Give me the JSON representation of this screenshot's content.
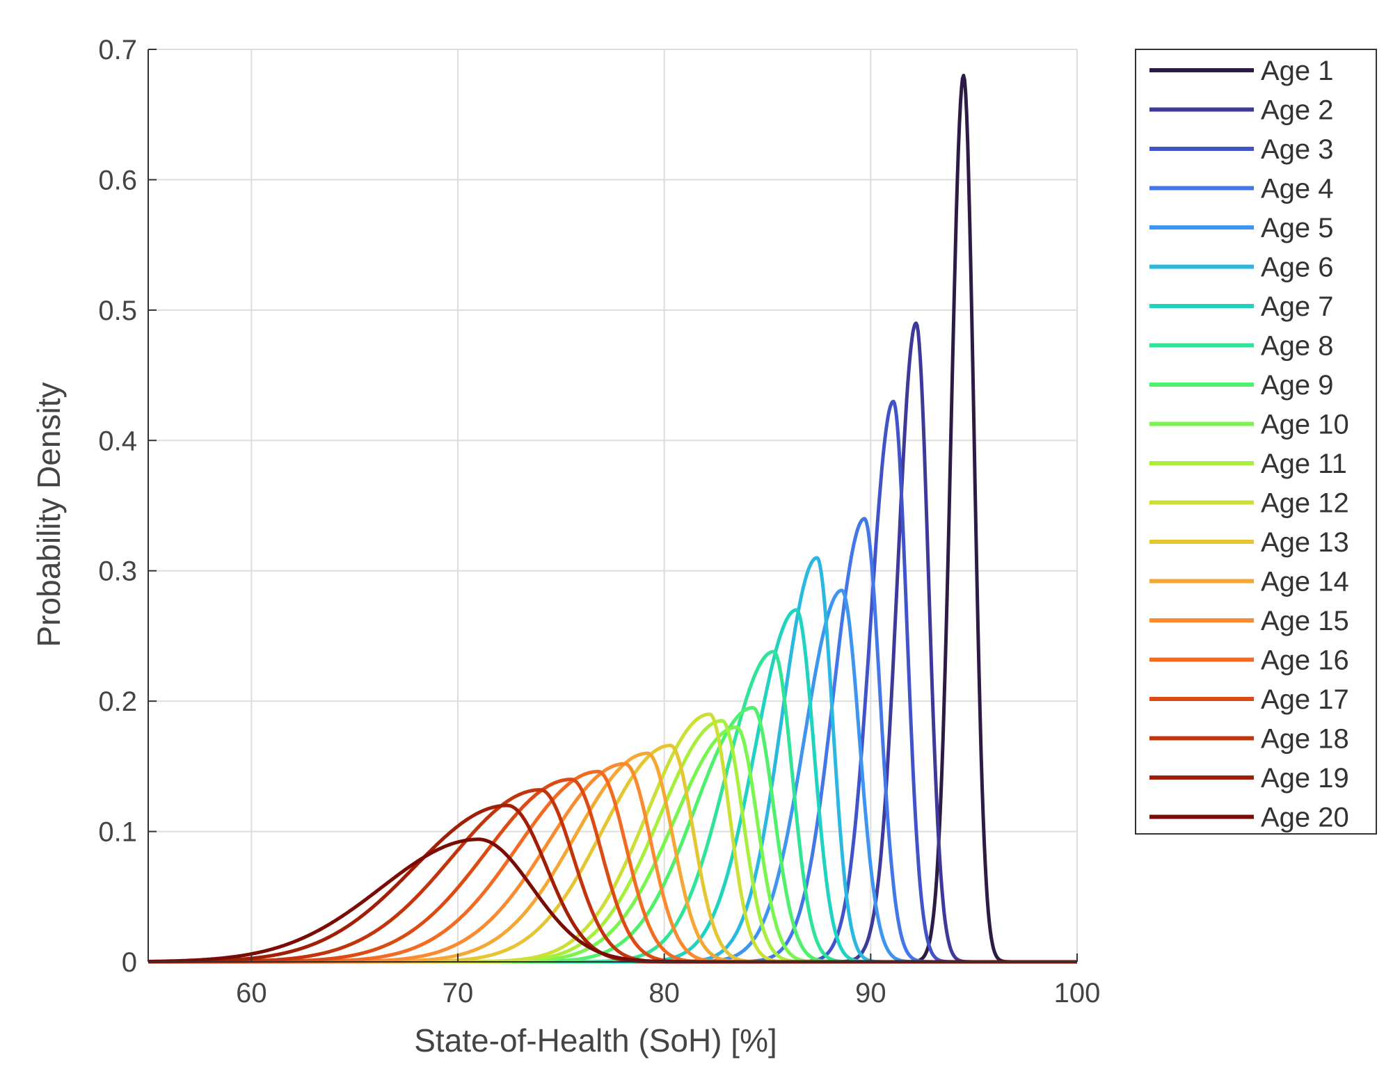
{
  "chart_data": {
    "type": "line",
    "title": "",
    "xlabel": "State-of-Health (SoH) [%]",
    "ylabel": "Probability Density",
    "xlim": [
      55,
      100
    ],
    "ylim": [
      0,
      0.7
    ],
    "xticks": [
      60,
      70,
      80,
      90,
      100
    ],
    "xtick_labels": [
      "60",
      "70",
      "80",
      "90",
      "100"
    ],
    "yticks": [
      0,
      0.1,
      0.2,
      0.3,
      0.4,
      0.5,
      0.6,
      0.7
    ],
    "ytick_labels": [
      "0",
      "0.1",
      "0.2",
      "0.3",
      "0.4",
      "0.5",
      "0.6",
      "0.7"
    ],
    "grid": true,
    "legend_position": "outside-right",
    "series": [
      {
        "name": "Age 1",
        "color": "#2d1a45",
        "mode": 94.5,
        "peak": 0.68,
        "sigma_left": 0.6,
        "sigma_right": 0.5
      },
      {
        "name": "Age 2",
        "color": "#3e3a9a",
        "mode": 92.2,
        "peak": 0.49,
        "sigma_left": 0.9,
        "sigma_right": 0.6
      },
      {
        "name": "Age 3",
        "color": "#4153c8",
        "mode": 91.1,
        "peak": 0.43,
        "sigma_left": 1.1,
        "sigma_right": 0.65
      },
      {
        "name": "Age 4",
        "color": "#4376e6",
        "mode": 89.7,
        "peak": 0.34,
        "sigma_left": 1.5,
        "sigma_right": 0.75
      },
      {
        "name": "Age 5",
        "color": "#3e95f0",
        "mode": 88.6,
        "peak": 0.285,
        "sigma_left": 1.8,
        "sigma_right": 0.85
      },
      {
        "name": "Age 6",
        "color": "#2bb8e0",
        "mode": 87.4,
        "peak": 0.31,
        "sigma_left": 1.7,
        "sigma_right": 0.75
      },
      {
        "name": "Age 7",
        "color": "#1fd3c0",
        "mode": 86.4,
        "peak": 0.27,
        "sigma_left": 2.0,
        "sigma_right": 0.85
      },
      {
        "name": "Age 8",
        "color": "#31e396",
        "mode": 85.3,
        "peak": 0.238,
        "sigma_left": 2.3,
        "sigma_right": 0.9
      },
      {
        "name": "Age 9",
        "color": "#4ef06c",
        "mode": 84.3,
        "peak": 0.195,
        "sigma_left": 2.8,
        "sigma_right": 1.0
      },
      {
        "name": "Age 10",
        "color": "#7af54d",
        "mode": 83.5,
        "peak": 0.18,
        "sigma_left": 3.0,
        "sigma_right": 1.0
      },
      {
        "name": "Age 11",
        "color": "#a8ef3d",
        "mode": 82.8,
        "peak": 0.185,
        "sigma_left": 3.0,
        "sigma_right": 1.0
      },
      {
        "name": "Age 12",
        "color": "#ccdf36",
        "mode": 82.2,
        "peak": 0.19,
        "sigma_left": 3.0,
        "sigma_right": 0.95
      },
      {
        "name": "Age 13",
        "color": "#e6c532",
        "mode": 80.3,
        "peak": 0.166,
        "sigma_left": 3.3,
        "sigma_right": 1.1
      },
      {
        "name": "Age 14",
        "color": "#f6a733",
        "mode": 79.2,
        "peak": 0.16,
        "sigma_left": 3.5,
        "sigma_right": 1.2
      },
      {
        "name": "Age 15",
        "color": "#fa8a2f",
        "mode": 78.1,
        "peak": 0.152,
        "sigma_left": 3.7,
        "sigma_right": 1.25
      },
      {
        "name": "Age 16",
        "color": "#f36a22",
        "mode": 76.8,
        "peak": 0.146,
        "sigma_left": 3.9,
        "sigma_right": 1.35
      },
      {
        "name": "Age 17",
        "color": "#dd4b14",
        "mode": 75.5,
        "peak": 0.14,
        "sigma_left": 4.1,
        "sigma_right": 1.45
      },
      {
        "name": "Age 18",
        "color": "#c3330c",
        "mode": 74.0,
        "peak": 0.132,
        "sigma_left": 4.3,
        "sigma_right": 1.6
      },
      {
        "name": "Age 19",
        "color": "#a11f07",
        "mode": 72.4,
        "peak": 0.12,
        "sigma_left": 4.5,
        "sigma_right": 1.9
      },
      {
        "name": "Age 20",
        "color": "#7a0b05",
        "mode": 71.0,
        "peak": 0.094,
        "sigma_left": 4.7,
        "sigma_right": 2.6
      }
    ]
  }
}
